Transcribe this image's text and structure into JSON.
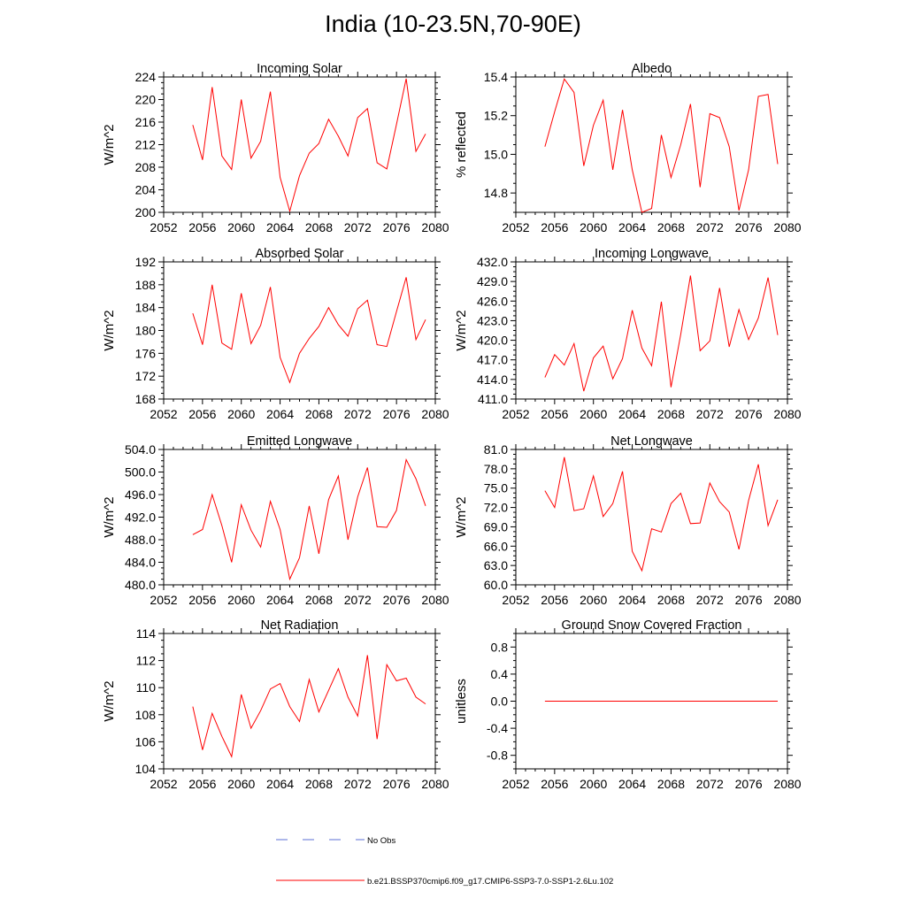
{
  "title": "India (10-23.5N,70-90E)",
  "colors": {
    "model_line": "#ff0000",
    "obs_line": "#5b6fd6",
    "axis": "#000000"
  },
  "legend": [
    {
      "label": "No Obs",
      "style": "dashed",
      "color": "#5b6fd6"
    },
    {
      "label": "b.e21.BSSP370cmip6.f09_g17.CMIP6-SSP3-7.0-SSP1-2.6Lu.102",
      "style": "solid",
      "color": "#ff0000"
    }
  ],
  "chart_data": [
    {
      "type": "line",
      "title": "Incoming Solar",
      "ylabel": "W/m^2",
      "xlim": [
        2052,
        2080
      ],
      "ylim": [
        200,
        224
      ],
      "xticks": [
        2052,
        2056,
        2060,
        2064,
        2068,
        2072,
        2076,
        2080
      ],
      "yticks": [
        "200",
        "204",
        "208",
        "212",
        "216",
        "220",
        "224"
      ],
      "ytick_values": [
        200,
        204,
        208,
        212,
        216,
        220,
        224
      ],
      "x": [
        2055,
        2056,
        2057,
        2058,
        2059,
        2060,
        2061,
        2062,
        2063,
        2064,
        2065,
        2066,
        2067,
        2068,
        2069,
        2070,
        2071,
        2072,
        2073,
        2074,
        2075,
        2076,
        2077,
        2078,
        2079
      ],
      "series": [
        {
          "values": [
            215.5,
            209.3,
            222.2,
            210.0,
            207.6,
            220.0,
            209.6,
            212.6,
            221.4,
            206.2,
            200.2,
            206.5,
            210.5,
            212.2,
            216.5,
            213.5,
            210.0,
            216.8,
            218.4,
            208.8,
            207.7,
            215.6,
            223.7,
            210.8,
            213.9
          ]
        }
      ]
    },
    {
      "type": "line",
      "title": "Albedo",
      "ylabel": "% reflected",
      "xlim": [
        2052,
        2080
      ],
      "ylim": [
        14.7,
        15.4
      ],
      "xticks": [
        2052,
        2056,
        2060,
        2064,
        2068,
        2072,
        2076,
        2080
      ],
      "yticks": [
        "14.8",
        "15.0",
        "15.2",
        "15.4"
      ],
      "ytick_values": [
        14.8,
        15.0,
        15.2,
        15.4
      ],
      "x": [
        2055,
        2056,
        2057,
        2058,
        2059,
        2060,
        2061,
        2062,
        2063,
        2064,
        2065,
        2066,
        2067,
        2068,
        2069,
        2070,
        2071,
        2072,
        2073,
        2074,
        2075,
        2076,
        2077,
        2078,
        2079
      ],
      "series": [
        {
          "values": [
            15.04,
            15.22,
            15.39,
            15.32,
            14.94,
            15.15,
            15.28,
            14.92,
            15.23,
            14.92,
            14.7,
            14.72,
            15.1,
            14.88,
            15.05,
            15.26,
            14.83,
            15.21,
            15.19,
            15.04,
            14.71,
            14.92,
            15.3,
            15.31,
            14.95
          ]
        }
      ]
    },
    {
      "type": "line",
      "title": "Absorbed Solar",
      "ylabel": "W/m^2",
      "xlim": [
        2052,
        2080
      ],
      "ylim": [
        168,
        192
      ],
      "xticks": [
        2052,
        2056,
        2060,
        2064,
        2068,
        2072,
        2076,
        2080
      ],
      "yticks": [
        "168",
        "172",
        "176",
        "180",
        "184",
        "188",
        "192"
      ],
      "ytick_values": [
        168,
        172,
        176,
        180,
        184,
        188,
        192
      ],
      "x": [
        2055,
        2056,
        2057,
        2058,
        2059,
        2060,
        2061,
        2062,
        2063,
        2064,
        2065,
        2066,
        2067,
        2068,
        2069,
        2070,
        2071,
        2072,
        2073,
        2074,
        2075,
        2076,
        2077,
        2078,
        2079
      ],
      "series": [
        {
          "values": [
            183.0,
            177.5,
            188.0,
            177.8,
            176.7,
            186.5,
            177.7,
            180.9,
            187.6,
            175.3,
            170.9,
            176.0,
            178.6,
            180.7,
            184.0,
            181.0,
            179.0,
            183.8,
            185.3,
            177.5,
            177.2,
            183.3,
            189.3,
            178.4,
            181.9
          ]
        }
      ]
    },
    {
      "type": "line",
      "title": "Incoming Longwave",
      "ylabel": "W/m^2",
      "xlim": [
        2052,
        2080
      ],
      "ylim": [
        411,
        432
      ],
      "xticks": [
        2052,
        2056,
        2060,
        2064,
        2068,
        2072,
        2076,
        2080
      ],
      "yticks": [
        "411.0",
        "414.0",
        "417.0",
        "420.0",
        "423.0",
        "426.0",
        "429.0",
        "432.0"
      ],
      "ytick_values": [
        411,
        414,
        417,
        420,
        423,
        426,
        429,
        432
      ],
      "x": [
        2055,
        2056,
        2057,
        2058,
        2059,
        2060,
        2061,
        2062,
        2063,
        2064,
        2065,
        2066,
        2067,
        2068,
        2069,
        2070,
        2071,
        2072,
        2073,
        2074,
        2075,
        2076,
        2077,
        2078,
        2079
      ],
      "series": [
        {
          "values": [
            414.3,
            417.8,
            416.2,
            419.5,
            412.2,
            417.3,
            419.1,
            414.1,
            417.2,
            424.6,
            418.8,
            416.1,
            425.9,
            412.8,
            420.9,
            429.9,
            418.4,
            419.9,
            428.0,
            419.0,
            424.7,
            420.1,
            423.4,
            429.6,
            420.8
          ]
        }
      ]
    },
    {
      "type": "line",
      "title": "Emitted Longwave",
      "ylabel": "W/m^2",
      "xlim": [
        2052,
        2080
      ],
      "ylim": [
        480,
        504
      ],
      "xticks": [
        2052,
        2056,
        2060,
        2064,
        2068,
        2072,
        2076,
        2080
      ],
      "yticks": [
        "480.0",
        "484.0",
        "488.0",
        "492.0",
        "496.0",
        "500.0",
        "504.0"
      ],
      "ytick_values": [
        480,
        484,
        488,
        492,
        496,
        500,
        504
      ],
      "x": [
        2055,
        2056,
        2057,
        2058,
        2059,
        2060,
        2061,
        2062,
        2063,
        2064,
        2065,
        2066,
        2067,
        2068,
        2069,
        2070,
        2071,
        2072,
        2073,
        2074,
        2075,
        2076,
        2077,
        2078,
        2079
      ],
      "series": [
        {
          "values": [
            488.9,
            489.8,
            496.0,
            490.5,
            484.0,
            494.2,
            489.7,
            486.7,
            494.8,
            489.8,
            481.0,
            484.8,
            494.0,
            485.5,
            495.1,
            499.3,
            488.0,
            495.6,
            500.8,
            490.3,
            490.2,
            493.2,
            502.2,
            498.8,
            494.0
          ]
        }
      ]
    },
    {
      "type": "line",
      "title": "Net Longwave",
      "ylabel": "W/m^2",
      "xlim": [
        2052,
        2080
      ],
      "ylim": [
        60,
        81
      ],
      "xticks": [
        2052,
        2056,
        2060,
        2064,
        2068,
        2072,
        2076,
        2080
      ],
      "yticks": [
        "60.0",
        "63.0",
        "66.0",
        "69.0",
        "72.0",
        "75.0",
        "78.0",
        "81.0"
      ],
      "ytick_values": [
        60,
        63,
        66,
        69,
        72,
        75,
        78,
        81
      ],
      "x": [
        2055,
        2056,
        2057,
        2058,
        2059,
        2060,
        2061,
        2062,
        2063,
        2064,
        2065,
        2066,
        2067,
        2068,
        2069,
        2070,
        2071,
        2072,
        2073,
        2074,
        2075,
        2076,
        2077,
        2078,
        2079
      ],
      "series": [
        {
          "values": [
            74.6,
            72.0,
            79.8,
            71.5,
            71.8,
            76.9,
            70.6,
            72.6,
            77.6,
            65.2,
            62.2,
            68.7,
            68.2,
            72.6,
            74.2,
            69.5,
            69.6,
            75.8,
            72.9,
            71.3,
            65.5,
            73.1,
            78.7,
            69.2,
            73.2
          ]
        }
      ]
    },
    {
      "type": "line",
      "title": "Net Radiation",
      "ylabel": "W/m^2",
      "xlim": [
        2052,
        2080
      ],
      "ylim": [
        104,
        114
      ],
      "xticks": [
        2052,
        2056,
        2060,
        2064,
        2068,
        2072,
        2076,
        2080
      ],
      "yticks": [
        "104",
        "106",
        "108",
        "110",
        "112",
        "114"
      ],
      "ytick_values": [
        104,
        106,
        108,
        110,
        112,
        114
      ],
      "x": [
        2055,
        2056,
        2057,
        2058,
        2059,
        2060,
        2061,
        2062,
        2063,
        2064,
        2065,
        2066,
        2067,
        2068,
        2069,
        2070,
        2071,
        2072,
        2073,
        2074,
        2075,
        2076,
        2077,
        2078,
        2079
      ],
      "series": [
        {
          "values": [
            108.6,
            105.4,
            108.1,
            106.4,
            104.9,
            109.5,
            107.0,
            108.3,
            109.9,
            110.3,
            108.6,
            107.5,
            110.6,
            108.2,
            109.8,
            111.4,
            109.3,
            107.9,
            112.4,
            106.2,
            111.7,
            110.5,
            110.7,
            109.3,
            108.8
          ]
        }
      ]
    },
    {
      "type": "line",
      "title": "Ground Snow Covered Fraction",
      "ylabel": "unitless",
      "xlim": [
        2052,
        2080
      ],
      "ylim": [
        -1.0,
        1.0
      ],
      "xticks": [
        2052,
        2056,
        2060,
        2064,
        2068,
        2072,
        2076,
        2080
      ],
      "yticks": [
        "-0.8",
        "-0.4",
        "0.0",
        "0.4",
        "0.8"
      ],
      "ytick_values": [
        -0.8,
        -0.4,
        0.0,
        0.4,
        0.8
      ],
      "x": [
        2055,
        2056,
        2057,
        2058,
        2059,
        2060,
        2061,
        2062,
        2063,
        2064,
        2065,
        2066,
        2067,
        2068,
        2069,
        2070,
        2071,
        2072,
        2073,
        2074,
        2075,
        2076,
        2077,
        2078,
        2079
      ],
      "series": [
        {
          "values": [
            0,
            0,
            0,
            0,
            0,
            0,
            0,
            0,
            0,
            0,
            0,
            0,
            0,
            0,
            0,
            0,
            0,
            0,
            0,
            0,
            0,
            0,
            0,
            0,
            0
          ]
        }
      ]
    }
  ]
}
